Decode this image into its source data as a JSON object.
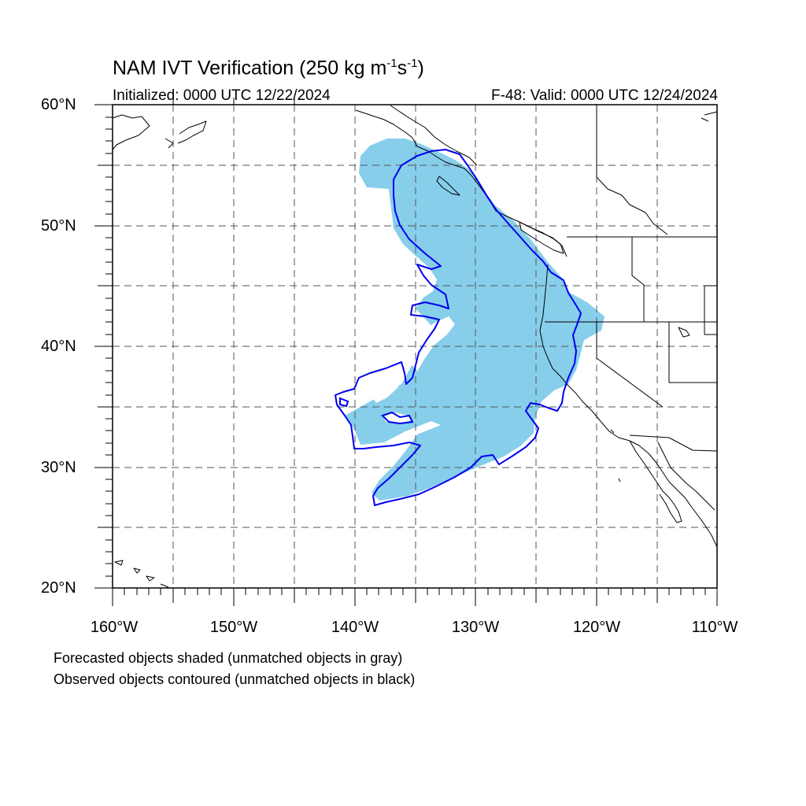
{
  "title": {
    "main": "NAM IVT Verification (250 kg m",
    "exp1": "-1",
    "mid": "s",
    "exp2": "-1",
    "end": ")"
  },
  "subtitle_left": "Initialized: 0000 UTC 12/22/2024",
  "subtitle_right": "F-48: Valid: 0000 UTC 12/24/2024",
  "lat_labels": [
    "60°N",
    "50°N",
    "40°N",
    "30°N",
    "20°N"
  ],
  "lon_labels": [
    "160°W",
    "150°W",
    "140°W",
    "130°W",
    "120°W",
    "110°W"
  ],
  "footer": [
    "Forecasted objects shaded (unmatched objects in gray)",
    "Observed objects contoured (unmatched objects in black)"
  ],
  "colors": {
    "forecast_fill": "#87ceeb",
    "observed_contour": "#0000ee",
    "coastline": "#000000",
    "grid": "#555555"
  }
}
